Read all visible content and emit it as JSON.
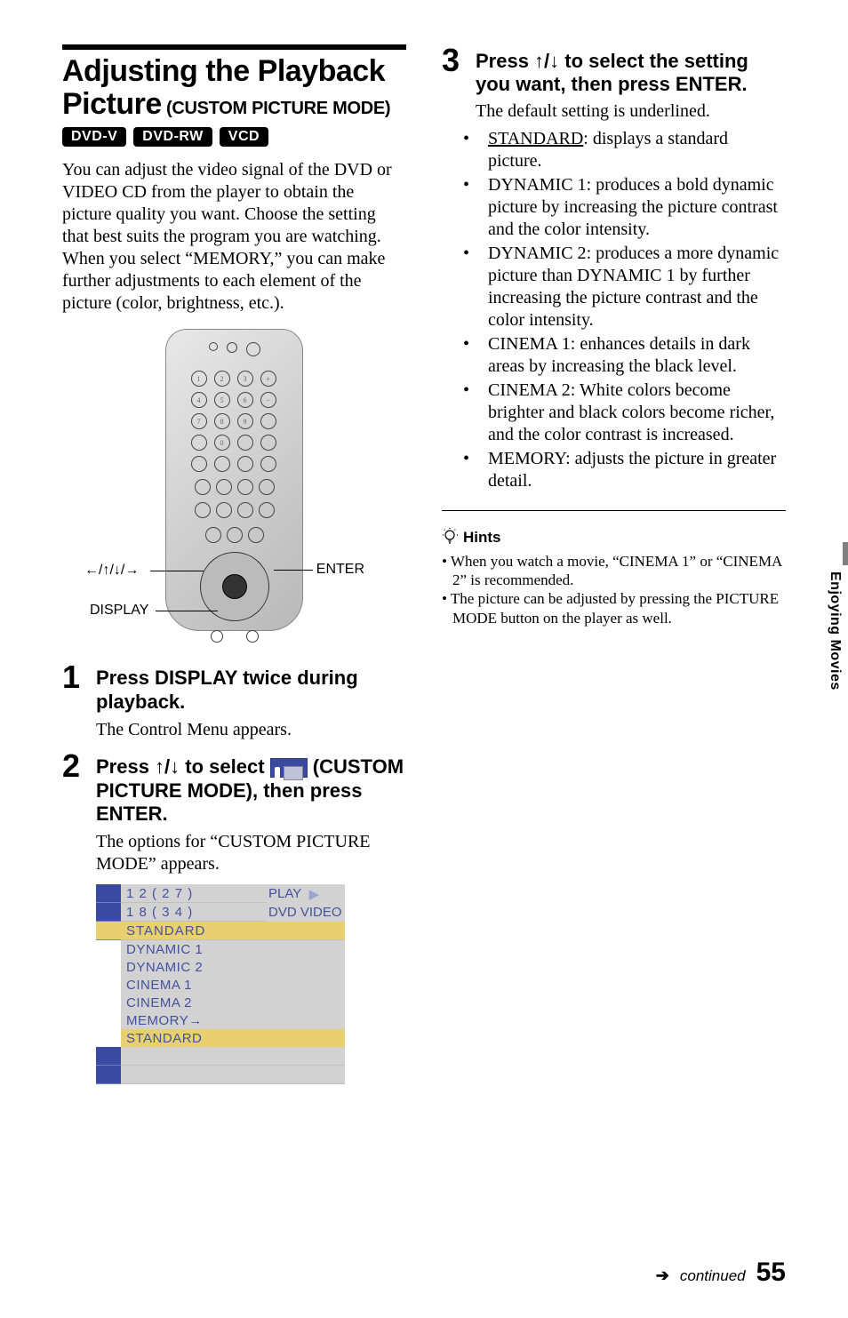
{
  "left": {
    "title_line1": "Adjusting the Playback",
    "title_line2": "Picture",
    "subtitle": " (CUSTOM PICTURE MODE)",
    "badges": [
      "DVD-V",
      "DVD-RW",
      "VCD"
    ],
    "intro": "You can adjust the video signal of the DVD or VIDEO CD from the player to obtain the picture quality you want. Choose the setting that best suits the program you are watching. When you select “MEMORY,” you can make further adjustments to each element of the picture (color, brightness, etc.).",
    "remote_labels": {
      "enter": "ENTER",
      "display": "DISPLAY",
      "arrows": "←/↑/↓/→"
    },
    "step1": {
      "num": "1",
      "head": "Press DISPLAY twice during playback.",
      "body": "The Control Menu appears."
    },
    "step2": {
      "num": "2",
      "head_a": "Press ↑/↓ to select ",
      "head_b": " (CUSTOM PICTURE MODE), then press ENTER.",
      "body": "The options for “CUSTOM PICTURE MODE” appears."
    },
    "osd": {
      "counter1": "1 2 ( 2 7 )",
      "counter2": "1 8 ( 3 4 )",
      "right1": "PLAY",
      "right1_tri": "▶",
      "right2": "DVD VIDEO",
      "current": "STANDARD",
      "options": [
        "DYNAMIC 1",
        "DYNAMIC 2",
        "CINEMA   1",
        "CINEMA   2",
        "MEMORY→"
      ],
      "selected": "STANDARD"
    }
  },
  "right": {
    "step3": {
      "num": "3",
      "head": "Press ↑/↓ to select the setting you want, then press ENTER.",
      "intro": "The default setting is underlined.",
      "items": [
        {
          "name": "STANDARD",
          "underline": true,
          "text": ": displays a standard picture."
        },
        {
          "name": "DYNAMIC 1",
          "underline": false,
          "text": ": produces a bold dynamic picture by increasing the picture contrast and the color intensity."
        },
        {
          "name": "DYNAMIC 2",
          "underline": false,
          "text": ": produces a more dynamic picture than DYNAMIC 1 by further increasing the picture contrast and the color intensity."
        },
        {
          "name": "CINEMA 1",
          "underline": false,
          "text": ": enhances details in dark areas by increasing the black level."
        },
        {
          "name": "CINEMA 2",
          "underline": false,
          "text": ": White colors become brighter and black colors become richer, and the color contrast is increased."
        },
        {
          "name": "MEMORY",
          "underline": false,
          "text": ": adjusts the picture in greater detail."
        }
      ]
    },
    "hints_label": "Hints",
    "hints": [
      "When you watch a movie, “CINEMA 1” or “CINEMA 2” is recommended.",
      "The picture can be adjusted by pressing the PICTURE MODE button on the player as well."
    ]
  },
  "side_tab": "Enjoying Movies",
  "footer": {
    "arrow": "➔",
    "continued": "continued",
    "page": "55"
  },
  "colors": {
    "osd_blue": "#3a4aa0",
    "osd_grey": "#d2d2d2",
    "osd_yellow": "#e8d070",
    "osd_text": "#44519e"
  }
}
